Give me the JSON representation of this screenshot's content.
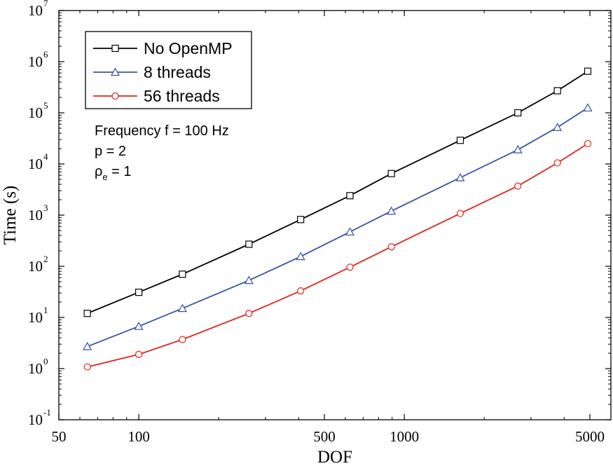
{
  "chart_data": {
    "type": "line",
    "xscale": "log",
    "yscale": "log",
    "xlabel": "DOF",
    "ylabel": "Time (s)",
    "xlim": [
      50,
      6000
    ],
    "ylim": [
      0.1,
      10000000
    ],
    "x_ticks": [
      {
        "value": 50,
        "label": "50"
      },
      {
        "value": 100,
        "label": "100"
      },
      {
        "value": 500,
        "label": "500"
      },
      {
        "value": 1000,
        "label": "1000"
      },
      {
        "value": 5000,
        "label": "5000"
      }
    ],
    "y_ticks": [
      {
        "value": 0.1,
        "base": "10",
        "exp": "-1"
      },
      {
        "value": 1,
        "base": "10",
        "exp": "0"
      },
      {
        "value": 10,
        "base": "10",
        "exp": "1"
      },
      {
        "value": 100,
        "base": "10",
        "exp": "2"
      },
      {
        "value": 1000,
        "base": "10",
        "exp": "3"
      },
      {
        "value": 10000,
        "base": "10",
        "exp": "4"
      },
      {
        "value": 100000,
        "base": "10",
        "exp": "5"
      },
      {
        "value": 1000000,
        "base": "10",
        "exp": "6"
      },
      {
        "value": 10000000,
        "base": "10",
        "exp": "7"
      }
    ],
    "x": [
      64,
      100,
      146,
      260,
      407,
      624,
      894,
      1625,
      2678,
      3773,
      4909
    ],
    "series": [
      {
        "name": "No OpenMP",
        "color": "#000000",
        "marker": "square",
        "values": [
          12,
          31,
          70,
          270,
          820,
          2400,
          6500,
          29000,
          100000,
          270000,
          650000
        ]
      },
      {
        "name": "8 threads",
        "color": "#3a50a8",
        "marker": "triangle",
        "values": [
          2.7,
          6.7,
          15,
          53,
          155,
          470,
          1200,
          5400,
          19000,
          52000,
          125000
        ]
      },
      {
        "name": "56 threads",
        "color": "#e2231a",
        "marker": "circle",
        "values": [
          1.08,
          1.9,
          3.7,
          12,
          33,
          96,
          240,
          1080,
          3700,
          10500,
          25000
        ]
      }
    ],
    "legend_position": "top-left",
    "annotations": {
      "line1": "Frequency f = 100 Hz",
      "line2": "p = 2",
      "line3_main": "ρ",
      "line3_sub": "e",
      "line3_rest": " = 1"
    }
  }
}
